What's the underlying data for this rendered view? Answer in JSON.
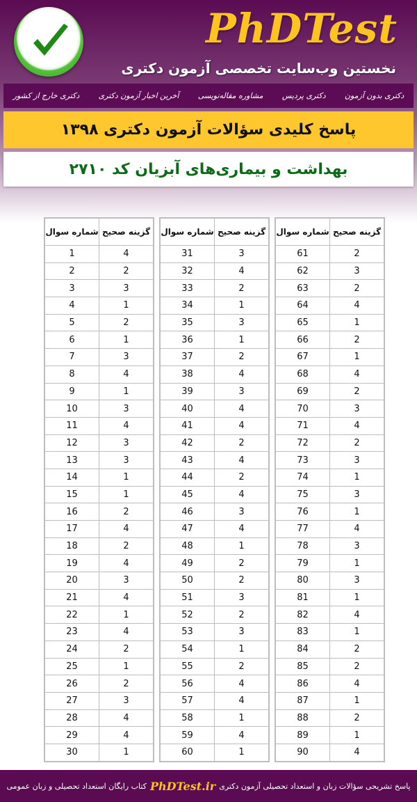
{
  "header": {
    "brand": "PhDTest",
    "tagline": "نخستین وب‌سایت تخصصی آزمون دکتری",
    "logo_icon": "checkmark-icon"
  },
  "nav": [
    "دکتری بدون آزمون",
    "دکتری پردیس",
    "مشاوره مقاله‌نویسی",
    "آخرین اخبار آزمون دکتری",
    "دکتری خارج از کشور"
  ],
  "title": "پاسخ کلیدی سؤالات آزمون دکتری ۱۳۹۸",
  "subtitle": "بهداشت و بیماری‌های آبزیان کد ۲۷۱۰",
  "table_headers": {
    "question": "شماره سوال",
    "answer": "گزینه صحیح"
  },
  "answers": [
    [
      [
        1,
        4
      ],
      [
        2,
        2
      ],
      [
        3,
        3
      ],
      [
        4,
        1
      ],
      [
        5,
        2
      ],
      [
        6,
        1
      ],
      [
        7,
        3
      ],
      [
        8,
        4
      ],
      [
        9,
        1
      ],
      [
        10,
        3
      ],
      [
        11,
        4
      ],
      [
        12,
        3
      ],
      [
        13,
        3
      ],
      [
        14,
        1
      ],
      [
        15,
        1
      ],
      [
        16,
        2
      ],
      [
        17,
        4
      ],
      [
        18,
        2
      ],
      [
        19,
        4
      ],
      [
        20,
        3
      ],
      [
        21,
        4
      ],
      [
        22,
        1
      ],
      [
        23,
        4
      ],
      [
        24,
        2
      ],
      [
        25,
        1
      ],
      [
        26,
        2
      ],
      [
        27,
        3
      ],
      [
        28,
        4
      ],
      [
        29,
        4
      ],
      [
        30,
        1
      ]
    ],
    [
      [
        31,
        3
      ],
      [
        32,
        4
      ],
      [
        33,
        2
      ],
      [
        34,
        1
      ],
      [
        35,
        3
      ],
      [
        36,
        1
      ],
      [
        37,
        2
      ],
      [
        38,
        4
      ],
      [
        39,
        3
      ],
      [
        40,
        4
      ],
      [
        41,
        4
      ],
      [
        42,
        2
      ],
      [
        43,
        4
      ],
      [
        44,
        2
      ],
      [
        45,
        4
      ],
      [
        46,
        3
      ],
      [
        47,
        4
      ],
      [
        48,
        1
      ],
      [
        49,
        2
      ],
      [
        50,
        2
      ],
      [
        51,
        3
      ],
      [
        52,
        2
      ],
      [
        53,
        3
      ],
      [
        54,
        1
      ],
      [
        55,
        2
      ],
      [
        56,
        4
      ],
      [
        57,
        4
      ],
      [
        58,
        1
      ],
      [
        59,
        4
      ],
      [
        60,
        1
      ]
    ],
    [
      [
        61,
        2
      ],
      [
        62,
        3
      ],
      [
        63,
        2
      ],
      [
        64,
        4
      ],
      [
        65,
        1
      ],
      [
        66,
        2
      ],
      [
        67,
        1
      ],
      [
        68,
        4
      ],
      [
        69,
        2
      ],
      [
        70,
        3
      ],
      [
        71,
        4
      ],
      [
        72,
        2
      ],
      [
        73,
        3
      ],
      [
        74,
        1
      ],
      [
        75,
        3
      ],
      [
        76,
        1
      ],
      [
        77,
        4
      ],
      [
        78,
        3
      ],
      [
        79,
        1
      ],
      [
        80,
        3
      ],
      [
        81,
        1
      ],
      [
        82,
        4
      ],
      [
        83,
        1
      ],
      [
        84,
        2
      ],
      [
        85,
        2
      ],
      [
        86,
        4
      ],
      [
        87,
        1
      ],
      [
        88,
        2
      ],
      [
        89,
        1
      ],
      [
        90,
        4
      ]
    ]
  ],
  "footer": {
    "before": "پاسخ تشریحی سؤالات زبان و استعداد تحصیلی آزمون دکتری",
    "site": "PhDTest.ir",
    "after": "کتاب رایگان استعداد تحصیلی و زبان عمومی"
  },
  "colors": {
    "purple": "#5a0b52",
    "yellow": "#fec72e",
    "green": "#0b6b16"
  }
}
